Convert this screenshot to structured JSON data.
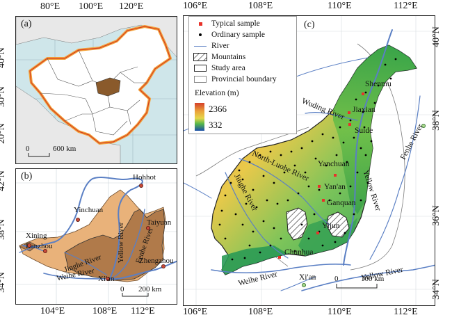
{
  "panel_a": {
    "label": "(a)",
    "top_ticks": [
      "80°E",
      "100°E",
      "120°E"
    ],
    "left_ticks": [
      "40°N",
      "30°N",
      "20°N"
    ],
    "scale_label": "600 km",
    "scale_zero": "0"
  },
  "panel_b": {
    "label": "(b)",
    "bottom_ticks": [
      "104°E",
      "108°E",
      "112°E"
    ],
    "left_ticks": [
      "42°N",
      "38°N",
      "34°N"
    ],
    "scale_label": "200 km",
    "scale_zero": "0",
    "places": {
      "hohhot": "Hohhot",
      "yinchuan": "Yinchuan",
      "xining": "Xining",
      "lanzhou": "Lanzhou",
      "taiyuan": "Taiyuan",
      "zhengzhou": "Zhengzhou",
      "xian": "Xi'an"
    },
    "rivers": {
      "yellow": "Yellow River",
      "fenhe": "Fenhe River",
      "jinghe": "Jinghe River",
      "weihe": "Weihe River"
    }
  },
  "panel_c": {
    "label": "(c)",
    "top_ticks": [
      "106°E",
      "108°E",
      "110°E",
      "112°E"
    ],
    "bottom_ticks": [
      "106°E",
      "108°E",
      "110°E",
      "112°E"
    ],
    "right_ticks": [
      "40°N",
      "38°N",
      "36°N",
      "34°N"
    ],
    "scale_label": "100 km",
    "scale_zero": "0",
    "places": {
      "shenmu": "Shenmu",
      "jiaxian": "Jiaxian",
      "suide": "Suide",
      "yanchuan": "Yanchuan",
      "yanan": "Yan'an",
      "ganquan": "Ganquan",
      "yijun": "Yijun",
      "chunhua": "Chunhua",
      "xian": "Xi'an"
    },
    "rivers": {
      "wuding": "Wuding River",
      "north_luohe": "North-Luohe River",
      "jinghe": "Jinghe River",
      "yellow": "Yellow River",
      "yellow_south": "Yellow River",
      "fenhe": "Fenhe River",
      "weihe": "Weihe River"
    }
  },
  "legend": {
    "typical_sample": "Typical sample",
    "ordinary_sample": "Ordinary sample",
    "river": "River",
    "mountains": "Mountains",
    "study_area": "Study area",
    "provincial_boundary": "Provincial boundary",
    "elevation_title": "Elevation (m)",
    "elev_max": "2366",
    "elev_min": "332"
  },
  "colors": {
    "river": "#5a7fc4",
    "typical": "#e8322a",
    "ocean": "#cfe6ea",
    "china_fill": "#ffffff",
    "study_area_a": "#8a5a2b",
    "loess_light": "#e9b27a",
    "loess_dark": "#b07a4a"
  }
}
